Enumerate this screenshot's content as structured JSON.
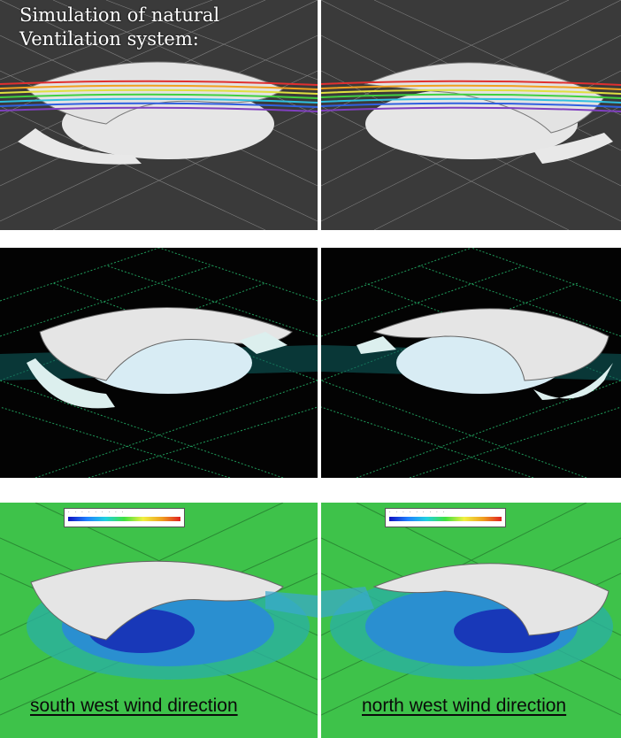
{
  "title": "Simulation of natural\nVentilation system:",
  "captions": {
    "left": "south west wind direction",
    "right": "north west wind direction"
  },
  "colors": {
    "row1_background": "#3b3b3b",
    "row2_background": "#030303",
    "row3_background": "#3ec24a",
    "roof": "#e9e9e9",
    "floor": "#dff3f6"
  }
}
